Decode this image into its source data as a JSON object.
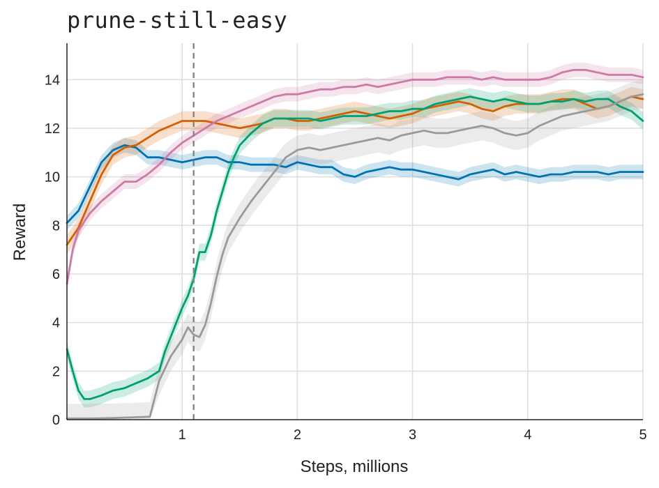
{
  "chart_data": {
    "type": "line",
    "title": "prune-still-easy",
    "xlabel": "Steps, millions",
    "ylabel": "Reward",
    "xlim": [
      0,
      5
    ],
    "ylim": [
      0,
      15.5
    ],
    "xticks": [
      1,
      2,
      3,
      4,
      5
    ],
    "yticks": [
      0,
      2,
      4,
      6,
      8,
      10,
      12,
      14
    ],
    "grid": true,
    "vline": 1.1,
    "series": [
      {
        "color": "#0072b2",
        "band": 0.3,
        "points": [
          [
            0,
            8.1
          ],
          [
            0.1,
            8.6
          ],
          [
            0.2,
            9.6
          ],
          [
            0.3,
            10.6
          ],
          [
            0.4,
            11.1
          ],
          [
            0.5,
            11.3
          ],
          [
            0.6,
            11.2
          ],
          [
            0.7,
            10.8
          ],
          [
            0.8,
            10.8
          ],
          [
            0.9,
            10.7
          ],
          [
            1.0,
            10.6
          ],
          [
            1.1,
            10.7
          ],
          [
            1.2,
            10.8
          ],
          [
            1.3,
            10.8
          ],
          [
            1.4,
            10.6
          ],
          [
            1.5,
            10.6
          ],
          [
            1.6,
            10.5
          ],
          [
            1.7,
            10.5
          ],
          [
            1.8,
            10.5
          ],
          [
            1.9,
            10.4
          ],
          [
            2.0,
            10.6
          ],
          [
            2.1,
            10.5
          ],
          [
            2.2,
            10.4
          ],
          [
            2.3,
            10.4
          ],
          [
            2.4,
            10.1
          ],
          [
            2.5,
            10.0
          ],
          [
            2.6,
            10.2
          ],
          [
            2.7,
            10.3
          ],
          [
            2.8,
            10.4
          ],
          [
            2.9,
            10.3
          ],
          [
            3.0,
            10.3
          ],
          [
            3.1,
            10.2
          ],
          [
            3.2,
            10.1
          ],
          [
            3.3,
            10.0
          ],
          [
            3.4,
            9.9
          ],
          [
            3.5,
            10.1
          ],
          [
            3.6,
            10.2
          ],
          [
            3.7,
            10.3
          ],
          [
            3.8,
            10.1
          ],
          [
            3.9,
            10.2
          ],
          [
            4.0,
            10.1
          ],
          [
            4.1,
            10.0
          ],
          [
            4.2,
            10.1
          ],
          [
            4.3,
            10.1
          ],
          [
            4.4,
            10.2
          ],
          [
            4.5,
            10.2
          ],
          [
            4.6,
            10.2
          ],
          [
            4.7,
            10.1
          ],
          [
            4.8,
            10.2
          ],
          [
            4.9,
            10.2
          ],
          [
            5.0,
            10.2
          ]
        ]
      },
      {
        "color": "#d55e00",
        "band": 0.4,
        "points": [
          [
            0,
            7.2
          ],
          [
            0.1,
            7.9
          ],
          [
            0.2,
            9.0
          ],
          [
            0.3,
            10.1
          ],
          [
            0.4,
            10.9
          ],
          [
            0.5,
            11.2
          ],
          [
            0.6,
            11.3
          ],
          [
            0.7,
            11.6
          ],
          [
            0.8,
            11.9
          ],
          [
            0.9,
            12.1
          ],
          [
            1.0,
            12.3
          ],
          [
            1.1,
            12.3
          ],
          [
            1.2,
            12.3
          ],
          [
            1.3,
            12.2
          ],
          [
            1.4,
            12.1
          ],
          [
            1.5,
            12.0
          ],
          [
            1.6,
            12.1
          ],
          [
            1.7,
            12.2
          ],
          [
            1.8,
            12.4
          ],
          [
            1.9,
            12.4
          ],
          [
            2.0,
            12.3
          ],
          [
            2.1,
            12.3
          ],
          [
            2.2,
            12.4
          ],
          [
            2.3,
            12.5
          ],
          [
            2.4,
            12.6
          ],
          [
            2.5,
            12.7
          ],
          [
            2.6,
            12.6
          ],
          [
            2.7,
            12.5
          ],
          [
            2.8,
            12.4
          ],
          [
            2.9,
            12.5
          ],
          [
            3.0,
            12.6
          ],
          [
            3.1,
            12.8
          ],
          [
            3.2,
            12.9
          ],
          [
            3.3,
            13.0
          ],
          [
            3.4,
            13.1
          ],
          [
            3.5,
            13.0
          ],
          [
            3.6,
            12.8
          ],
          [
            3.7,
            12.7
          ],
          [
            3.8,
            12.9
          ],
          [
            3.9,
            13.0
          ],
          [
            4.0,
            13.0
          ],
          [
            4.1,
            13.0
          ],
          [
            4.2,
            13.1
          ],
          [
            4.3,
            13.2
          ],
          [
            4.4,
            13.2
          ],
          [
            4.5,
            13.0
          ],
          [
            4.6,
            12.8
          ],
          [
            4.7,
            12.9
          ],
          [
            4.8,
            13.1
          ],
          [
            4.9,
            13.3
          ],
          [
            5.0,
            13.2
          ]
        ]
      },
      {
        "color": "#cc79a7",
        "band": 0.3,
        "points": [
          [
            0,
            5.6
          ],
          [
            0.05,
            7.0
          ],
          [
            0.1,
            7.8
          ],
          [
            0.2,
            8.5
          ],
          [
            0.3,
            9.0
          ],
          [
            0.4,
            9.4
          ],
          [
            0.5,
            9.8
          ],
          [
            0.6,
            9.8
          ],
          [
            0.7,
            10.1
          ],
          [
            0.8,
            10.5
          ],
          [
            0.9,
            11.0
          ],
          [
            1.0,
            11.4
          ],
          [
            1.1,
            11.7
          ],
          [
            1.2,
            12.0
          ],
          [
            1.3,
            12.3
          ],
          [
            1.4,
            12.5
          ],
          [
            1.5,
            12.7
          ],
          [
            1.6,
            12.9
          ],
          [
            1.7,
            13.1
          ],
          [
            1.8,
            13.3
          ],
          [
            1.9,
            13.4
          ],
          [
            2.0,
            13.4
          ],
          [
            2.1,
            13.5
          ],
          [
            2.2,
            13.6
          ],
          [
            2.3,
            13.6
          ],
          [
            2.4,
            13.7
          ],
          [
            2.5,
            13.7
          ],
          [
            2.6,
            13.8
          ],
          [
            2.7,
            13.7
          ],
          [
            2.8,
            13.8
          ],
          [
            2.9,
            13.9
          ],
          [
            3.0,
            14.0
          ],
          [
            3.1,
            14.0
          ],
          [
            3.2,
            14.0
          ],
          [
            3.3,
            14.1
          ],
          [
            3.4,
            14.1
          ],
          [
            3.5,
            14.1
          ],
          [
            3.6,
            14.0
          ],
          [
            3.7,
            14.1
          ],
          [
            3.8,
            14.0
          ],
          [
            3.9,
            14.0
          ],
          [
            4.0,
            14.0
          ],
          [
            4.1,
            14.0
          ],
          [
            4.2,
            14.1
          ],
          [
            4.3,
            14.3
          ],
          [
            4.4,
            14.4
          ],
          [
            4.5,
            14.4
          ],
          [
            4.6,
            14.3
          ],
          [
            4.7,
            14.2
          ],
          [
            4.8,
            14.2
          ],
          [
            4.9,
            14.2
          ],
          [
            5.0,
            14.1
          ]
        ]
      },
      {
        "color": "#009e73",
        "band": 0.35,
        "points": [
          [
            0,
            2.9
          ],
          [
            0.05,
            2.0
          ],
          [
            0.1,
            1.2
          ],
          [
            0.15,
            0.85
          ],
          [
            0.2,
            0.85
          ],
          [
            0.3,
            1.0
          ],
          [
            0.4,
            1.2
          ],
          [
            0.5,
            1.3
          ],
          [
            0.6,
            1.5
          ],
          [
            0.7,
            1.7
          ],
          [
            0.8,
            2.0
          ],
          [
            0.85,
            2.8
          ],
          [
            0.9,
            3.4
          ],
          [
            0.95,
            4.0
          ],
          [
            1.0,
            4.6
          ],
          [
            1.05,
            5.1
          ],
          [
            1.1,
            5.8
          ],
          [
            1.15,
            6.9
          ],
          [
            1.2,
            6.9
          ],
          [
            1.25,
            7.6
          ],
          [
            1.3,
            8.6
          ],
          [
            1.35,
            9.4
          ],
          [
            1.4,
            10.2
          ],
          [
            1.45,
            10.8
          ],
          [
            1.5,
            11.3
          ],
          [
            1.6,
            11.8
          ],
          [
            1.7,
            12.2
          ],
          [
            1.8,
            12.4
          ],
          [
            1.9,
            12.4
          ],
          [
            2.0,
            12.4
          ],
          [
            2.1,
            12.4
          ],
          [
            2.2,
            12.3
          ],
          [
            2.3,
            12.4
          ],
          [
            2.4,
            12.5
          ],
          [
            2.5,
            12.5
          ],
          [
            2.6,
            12.5
          ],
          [
            2.7,
            12.6
          ],
          [
            2.8,
            12.7
          ],
          [
            2.9,
            12.7
          ],
          [
            3.0,
            12.8
          ],
          [
            3.1,
            12.8
          ],
          [
            3.2,
            13.0
          ],
          [
            3.3,
            13.1
          ],
          [
            3.4,
            13.2
          ],
          [
            3.5,
            13.3
          ],
          [
            3.6,
            13.2
          ],
          [
            3.7,
            13.1
          ],
          [
            3.8,
            13.2
          ],
          [
            3.9,
            13.1
          ],
          [
            4.0,
            13.0
          ],
          [
            4.1,
            13.0
          ],
          [
            4.2,
            13.1
          ],
          [
            4.3,
            13.1
          ],
          [
            4.4,
            13.2
          ],
          [
            4.5,
            13.1
          ],
          [
            4.6,
            13.2
          ],
          [
            4.7,
            13.2
          ],
          [
            4.8,
            12.9
          ],
          [
            4.9,
            12.7
          ],
          [
            5.0,
            12.3
          ]
        ]
      },
      {
        "color": "#999999",
        "band": 0.6,
        "points": [
          [
            0,
            0.05
          ],
          [
            0.2,
            0.05
          ],
          [
            0.4,
            0.07
          ],
          [
            0.6,
            0.1
          ],
          [
            0.72,
            0.12
          ],
          [
            0.8,
            1.6
          ],
          [
            0.9,
            2.6
          ],
          [
            1.0,
            3.3
          ],
          [
            1.05,
            3.8
          ],
          [
            1.1,
            3.5
          ],
          [
            1.15,
            3.4
          ],
          [
            1.2,
            3.9
          ],
          [
            1.25,
            4.8
          ],
          [
            1.3,
            5.9
          ],
          [
            1.35,
            6.8
          ],
          [
            1.4,
            7.5
          ],
          [
            1.5,
            8.3
          ],
          [
            1.6,
            9.0
          ],
          [
            1.7,
            9.6
          ],
          [
            1.8,
            10.2
          ],
          [
            1.9,
            10.8
          ],
          [
            2.0,
            11.1
          ],
          [
            2.1,
            11.2
          ],
          [
            2.2,
            11.1
          ],
          [
            2.3,
            11.2
          ],
          [
            2.4,
            11.3
          ],
          [
            2.5,
            11.4
          ],
          [
            2.6,
            11.5
          ],
          [
            2.7,
            11.6
          ],
          [
            2.8,
            11.5
          ],
          [
            2.9,
            11.7
          ],
          [
            3.0,
            11.8
          ],
          [
            3.1,
            11.9
          ],
          [
            3.2,
            11.8
          ],
          [
            3.3,
            11.8
          ],
          [
            3.4,
            11.9
          ],
          [
            3.5,
            12.0
          ],
          [
            3.6,
            12.1
          ],
          [
            3.7,
            12.0
          ],
          [
            3.8,
            11.8
          ],
          [
            3.9,
            11.7
          ],
          [
            4.0,
            11.8
          ],
          [
            4.1,
            12.1
          ],
          [
            4.2,
            12.3
          ],
          [
            4.3,
            12.5
          ],
          [
            4.4,
            12.6
          ],
          [
            4.5,
            12.7
          ],
          [
            4.6,
            12.8
          ],
          [
            4.7,
            12.9
          ],
          [
            4.8,
            13.1
          ],
          [
            4.9,
            13.3
          ],
          [
            5.0,
            13.4
          ]
        ]
      }
    ]
  }
}
